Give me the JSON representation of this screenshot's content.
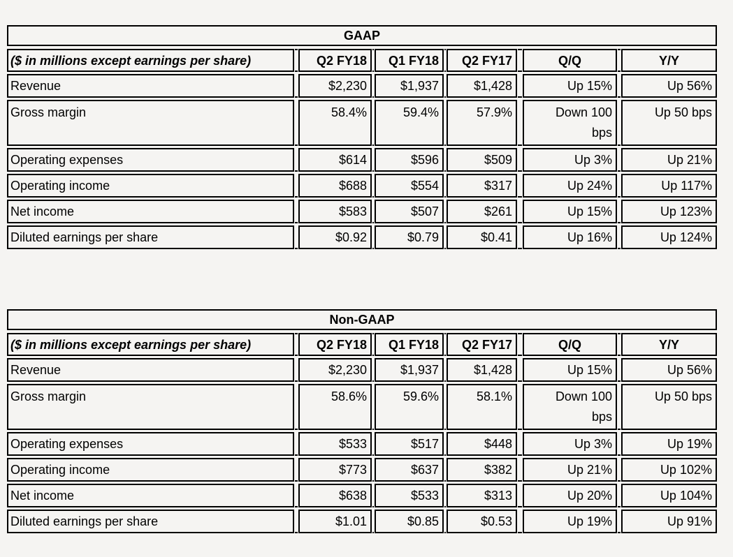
{
  "page": {
    "background_color": "#f5f4f2",
    "border_color": "#000000",
    "text_color": "#000000"
  },
  "tables": [
    {
      "title": "GAAP",
      "unit_note": "($ in millions except earnings per share)",
      "columns": [
        "Q2 FY18",
        "Q1 FY18",
        "Q2 FY17",
        "Q/Q",
        "Y/Y"
      ],
      "rows": [
        {
          "label": "Revenue",
          "values": [
            "$2,230",
            "$1,937",
            "$1,428",
            "Up 15%",
            "Up 56%"
          ]
        },
        {
          "label": "Gross margin",
          "values": [
            "58.4%",
            "59.4%",
            "57.9%",
            "Down 100 bps",
            "Up 50 bps"
          ],
          "tall": true
        },
        {
          "label": "Operating expenses",
          "values": [
            "$614",
            "$596",
            "$509",
            "Up 3%",
            "Up 21%"
          ]
        },
        {
          "label": "Operating income",
          "values": [
            "$688",
            "$554",
            "$317",
            "Up 24%",
            "Up 117%"
          ]
        },
        {
          "label": "Net income",
          "values": [
            "$583",
            "$507",
            "$261",
            "Up 15%",
            "Up 123%"
          ]
        },
        {
          "label": "Diluted earnings per share",
          "values": [
            "$0.92",
            "$0.79",
            "$0.41",
            "Up 16%",
            "Up 124%"
          ]
        }
      ]
    },
    {
      "title": "Non-GAAP",
      "unit_note": "($ in millions except earnings per share)",
      "columns": [
        "Q2 FY18",
        "Q1 FY18",
        "Q2 FY17",
        "Q/Q",
        "Y/Y"
      ],
      "rows": [
        {
          "label": "Revenue",
          "values": [
            "$2,230",
            "$1,937",
            "$1,428",
            "Up 15%",
            "Up 56%"
          ]
        },
        {
          "label": "Gross margin",
          "values": [
            "58.6%",
            "59.6%",
            "58.1%",
            "Down 100 bps",
            "Up 50 bps"
          ],
          "tall": true
        },
        {
          "label": "Operating expenses",
          "values": [
            "$533",
            "$517",
            "$448",
            "Up 3%",
            "Up 19%"
          ]
        },
        {
          "label": "Operating income",
          "values": [
            "$773",
            "$637",
            "$382",
            "Up 21%",
            "Up 102%"
          ]
        },
        {
          "label": "Net income",
          "values": [
            "$638",
            "$533",
            "$313",
            "Up 20%",
            "Up 104%"
          ]
        },
        {
          "label": "Diluted earnings per share",
          "values": [
            "$1.01",
            "$0.85",
            "$0.53",
            "Up 19%",
            "Up 91%"
          ]
        }
      ]
    }
  ]
}
